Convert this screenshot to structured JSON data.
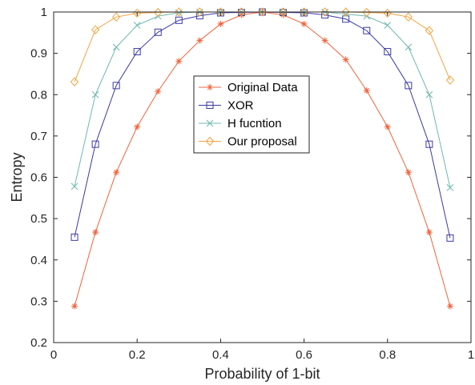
{
  "chart_data": {
    "type": "line",
    "title": "",
    "xlabel": "Probability of 1-bit",
    "ylabel": "Entropy",
    "xlim": [
      0,
      1
    ],
    "ylim": [
      0.2,
      1
    ],
    "x_ticks": [
      "0",
      "0.2",
      "0.4",
      "0.6",
      "0.8",
      "1"
    ],
    "y_ticks": [
      "0.2",
      "0.3",
      "0.4",
      "0.5",
      "0.6",
      "0.7",
      "0.8",
      "0.9",
      "1"
    ],
    "grid": false,
    "legend_position": "center",
    "x": [
      0.05,
      0.1,
      0.15,
      0.2,
      0.25,
      0.3,
      0.35,
      0.4,
      0.45,
      0.5,
      0.55,
      0.6,
      0.65,
      0.7,
      0.75,
      0.8,
      0.85,
      0.9,
      0.95
    ],
    "series": [
      {
        "name": "Original Data",
        "color": "#f0643c",
        "marker": "asterisk",
        "values": [
          0.288,
          0.467,
          0.612,
          0.722,
          0.808,
          0.881,
          0.931,
          0.971,
          0.993,
          1.0,
          0.993,
          0.971,
          0.931,
          0.885,
          0.81,
          0.722,
          0.612,
          0.467,
          0.288
        ]
      },
      {
        "name": "XOR",
        "color": "#3a3aa6",
        "marker": "square",
        "values": [
          0.455,
          0.68,
          0.822,
          0.904,
          0.951,
          0.98,
          0.991,
          0.998,
          0.999,
          1.0,
          0.999,
          0.998,
          0.993,
          0.983,
          0.955,
          0.904,
          0.822,
          0.68,
          0.453
        ]
      },
      {
        "name": "H fucntion",
        "color": "#6fb8b0",
        "marker": "cross",
        "values": [
          0.578,
          0.8,
          0.915,
          0.968,
          0.99,
          0.998,
          1.0,
          1.0,
          1.0,
          1.0,
          1.0,
          1.0,
          1.0,
          0.995,
          0.99,
          0.968,
          0.915,
          0.8,
          0.575
        ]
      },
      {
        "name": "Our proposal",
        "color": "#f2a541",
        "marker": "diamond",
        "values": [
          0.831,
          0.957,
          0.988,
          0.997,
          0.999,
          1.0,
          1.0,
          1.0,
          1.0,
          1.0,
          1.0,
          1.0,
          1.0,
          1.0,
          0.999,
          0.997,
          0.988,
          0.955,
          0.835
        ]
      }
    ]
  }
}
